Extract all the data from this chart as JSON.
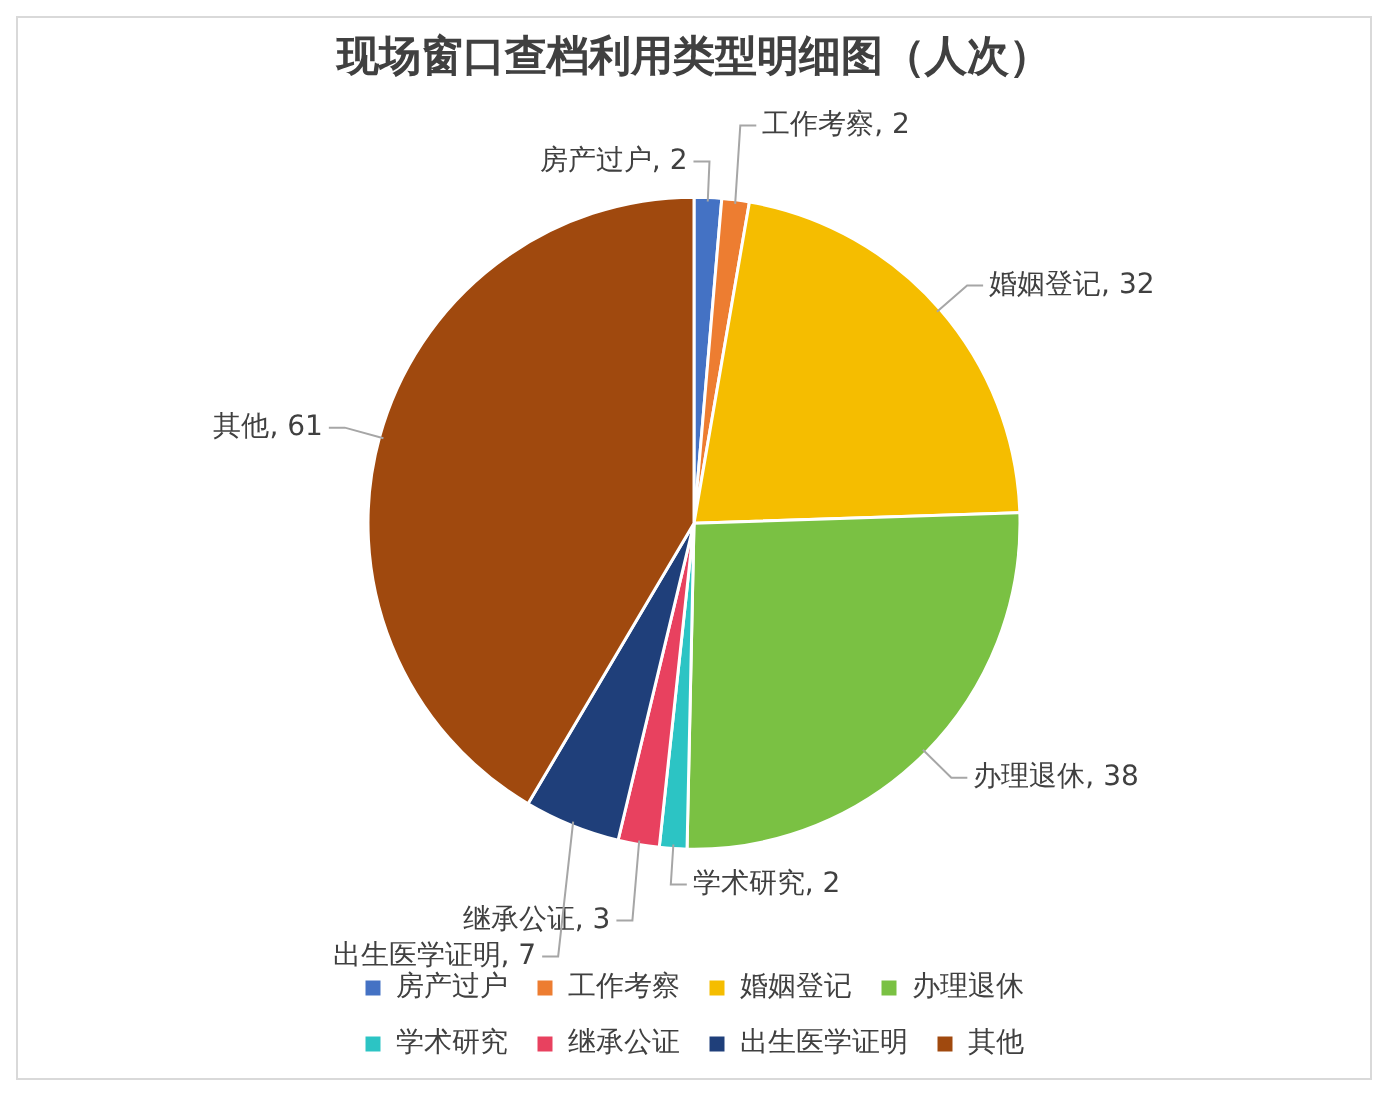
{
  "chart_data": {
    "type": "pie",
    "title": "现场窗口查档利用类型明细图（人次）",
    "categories": [
      "房产过户",
      "工作考察",
      "婚姻登记",
      "办理退休",
      "学术研究",
      "继承公证",
      "出生医学证明",
      "其他"
    ],
    "values": [
      2,
      2,
      32,
      38,
      2,
      3,
      7,
      61
    ],
    "colors": [
      "#4472c4",
      "#ed7d31",
      "#f5bd00",
      "#7ac143",
      "#2cc4c4",
      "#e8415f",
      "#1f3f7a",
      "#a0490e"
    ],
    "value_labels": [
      "房产过户, 2",
      "工作考察, 2",
      "婚姻登记, 32",
      "办理退休, 38",
      "学术研究, 2",
      "继承公证, 3",
      "出生医学证明, 7",
      "其他, 61"
    ],
    "legend": "bottom"
  }
}
